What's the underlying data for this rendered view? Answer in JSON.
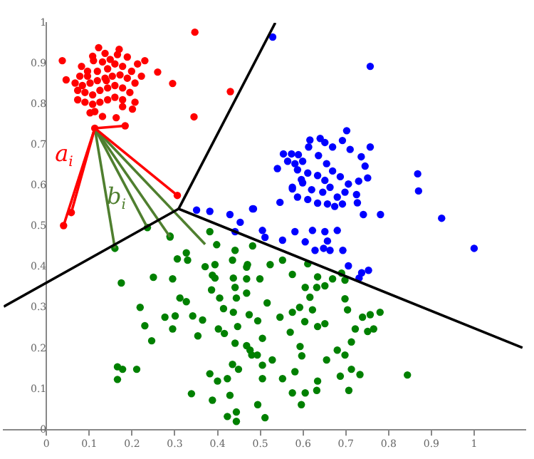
{
  "chart_data": {
    "type": "scatter",
    "xlim": [
      -0.1,
      1.12
    ],
    "ylim": [
      0,
      1
    ],
    "xticks": [
      {
        "value": 0,
        "label": "0"
      },
      {
        "value": 0.1,
        "label": "0.1"
      },
      {
        "value": 0.2,
        "label": "0.2"
      },
      {
        "value": 0.3,
        "label": "0.3"
      },
      {
        "value": 0.4,
        "label": "0.4"
      },
      {
        "value": 0.5,
        "label": "0.5"
      },
      {
        "value": 0.6,
        "label": "0.6"
      },
      {
        "value": 0.7,
        "label": "0.7"
      },
      {
        "value": 0.8,
        "label": "0.8"
      },
      {
        "value": 0.9,
        "label": "0.9"
      },
      {
        "value": 1,
        "label": "1"
      }
    ],
    "yticks": [
      {
        "value": 0,
        "label": "0"
      },
      {
        "value": 0.1,
        "label": "0.1"
      },
      {
        "value": 0.2,
        "label": "0.2"
      },
      {
        "value": 0.3,
        "label": "0.3"
      },
      {
        "value": 0.4,
        "label": "0.4"
      },
      {
        "value": 0.5,
        "label": "0.5"
      },
      {
        "value": 0.6,
        "label": "0.6"
      },
      {
        "value": 0.7,
        "label": "0.7"
      },
      {
        "value": 0.8,
        "label": "0.8"
      },
      {
        "value": 0.9,
        "label": "0.9"
      },
      {
        "value": 1,
        "label": "1"
      }
    ],
    "grid": false,
    "legend": false,
    "marker": "circle",
    "annotations": [
      "a$_{i}$",
      "b$_{i}$"
    ],
    "series": [
      {
        "type": "scatter",
        "color": "#ff0000",
        "x": [
          0.037,
          0.046,
          0.347,
          0.26,
          0.295,
          0.43,
          0.345,
          0.23,
          0.184,
          0.306,
          0.058,
          0.04,
          0.113,
          0.17,
          0.122,
          0.082,
          0.096,
          0.11,
          0.131,
          0.143,
          0.16,
          0.178,
          0.199,
          0.213,
          0.222,
          0.207,
          0.189,
          0.172,
          0.154,
          0.137,
          0.119,
          0.102,
          0.084,
          0.073,
          0.09,
          0.108,
          0.125,
          0.143,
          0.16,
          0.178,
          0.195,
          0.207,
          0.201,
          0.178,
          0.16,
          0.143,
          0.125,
          0.108,
          0.09,
          0.073,
          0.113,
          0.131,
          0.163,
          0.178,
          0.096,
          0.149,
          0.189,
          0.166,
          0.137,
          0.108,
          0.119,
          0.14,
          0.102,
          0.078,
          0.067
        ],
        "values": [
          0.907,
          0.86,
          0.977,
          0.879,
          0.851,
          0.831,
          0.769,
          0.907,
          0.747,
          0.576,
          0.534,
          0.502,
          0.741,
          0.935,
          0.939,
          0.893,
          0.881,
          0.907,
          0.904,
          0.887,
          0.899,
          0.893,
          0.881,
          0.899,
          0.869,
          0.852,
          0.864,
          0.872,
          0.869,
          0.864,
          0.858,
          0.852,
          0.846,
          0.834,
          0.829,
          0.823,
          0.834,
          0.84,
          0.846,
          0.84,
          0.829,
          0.805,
          0.788,
          0.811,
          0.817,
          0.811,
          0.805,
          0.8,
          0.805,
          0.811,
          0.782,
          0.77,
          0.767,
          0.794,
          0.869,
          0.91,
          0.916,
          0.922,
          0.925,
          0.918,
          0.881,
          0.858,
          0.779,
          0.869,
          0.852
        ]
      },
      {
        "type": "scatter",
        "color": "#0000ff",
        "x": [
          0.529,
          0.757,
          0.702,
          0.757,
          0.868,
          0.87,
          0.924,
          0.781,
          0.741,
          0.546,
          0.484,
          0.554,
          0.573,
          0.589,
          0.616,
          0.64,
          0.651,
          0.669,
          0.692,
          0.71,
          0.736,
          0.745,
          0.751,
          0.73,
          0.706,
          0.687,
          0.669,
          0.655,
          0.636,
          0.613,
          0.599,
          0.581,
          0.564,
          0.54,
          0.587,
          0.611,
          0.634,
          0.651,
          0.663,
          0.646,
          0.62,
          0.599,
          0.575,
          0.587,
          0.611,
          0.634,
          0.657,
          0.68,
          0.698,
          0.725,
          0.727,
          0.674,
          0.575,
          0.596,
          0.692,
          1.0,
          0.753,
          0.737,
          0.731,
          0.706,
          0.693,
          0.663,
          0.648,
          0.628,
          0.605,
          0.657,
          0.68,
          0.651,
          0.622,
          0.581,
          0.552,
          0.511,
          0.505,
          0.351,
          0.382,
          0.429,
          0.453,
          0.482,
          0.441
        ],
        "values": [
          0.965,
          0.893,
          0.735,
          0.695,
          0.629,
          0.587,
          0.52,
          0.529,
          0.529,
          0.559,
          0.543,
          0.678,
          0.678,
          0.676,
          0.712,
          0.716,
          0.706,
          0.695,
          0.711,
          0.689,
          0.671,
          0.648,
          0.619,
          0.611,
          0.604,
          0.622,
          0.636,
          0.654,
          0.674,
          0.695,
          0.66,
          0.654,
          0.66,
          0.642,
          0.639,
          0.631,
          0.625,
          0.613,
          0.596,
          0.584,
          0.59,
          0.607,
          0.596,
          0.572,
          0.566,
          0.557,
          0.555,
          0.572,
          0.584,
          0.578,
          0.558,
          0.549,
          0.592,
          0.615,
          0.555,
          0.446,
          0.392,
          0.386,
          0.373,
          0.403,
          0.441,
          0.441,
          0.446,
          0.441,
          0.462,
          0.464,
          0.49,
          0.487,
          0.49,
          0.487,
          0.466,
          0.473,
          0.49,
          0.54,
          0.537,
          0.529,
          0.51,
          0.543,
          0.487
        ]
      },
      {
        "type": "scatter",
        "color": "#008000",
        "x": [
          0.16,
          0.175,
          0.219,
          0.23,
          0.246,
          0.25,
          0.277,
          0.295,
          0.301,
          0.295,
          0.289,
          0.327,
          0.33,
          0.312,
          0.327,
          0.306,
          0.166,
          0.178,
          0.166,
          0.211,
          0.339,
          0.342,
          0.365,
          0.354,
          0.371,
          0.382,
          0.398,
          0.394,
          0.388,
          0.394,
          0.386,
          0.405,
          0.414,
          0.402,
          0.416,
          0.435,
          0.441,
          0.437,
          0.441,
          0.444,
          0.437,
          0.447,
          0.441,
          0.435,
          0.449,
          0.423,
          0.4,
          0.382,
          0.429,
          0.388,
          0.423,
          0.444,
          0.444,
          0.468,
          0.468,
          0.468,
          0.474,
          0.468,
          0.48,
          0.494,
          0.494,
          0.482,
          0.47,
          0.499,
          0.523,
          0.552,
          0.575,
          0.611,
          0.634,
          0.669,
          0.698,
          0.605,
          0.632,
          0.616,
          0.516,
          0.546,
          0.575,
          0.592,
          0.622,
          0.634,
          0.651,
          0.604,
          0.57,
          0.505,
          0.476,
          0.493,
          0.505,
          0.528,
          0.593,
          0.597,
          0.581,
          0.552,
          0.505,
          0.575,
          0.605,
          0.634,
          0.632,
          0.596,
          0.511,
          0.687,
          0.707,
          0.713,
          0.733,
          0.68,
          0.698,
          0.713,
          0.722,
          0.751,
          0.765,
          0.757,
          0.78,
          0.739,
          0.704,
          0.698,
          0.655,
          0.844,
          0.651,
          0.69,
          0.236,
          0.289
        ],
        "values": [
          0.446,
          0.361,
          0.301,
          0.256,
          0.219,
          0.375,
          0.277,
          0.248,
          0.28,
          0.371,
          0.476,
          0.435,
          0.417,
          0.324,
          0.315,
          0.42,
          0.155,
          0.149,
          0.124,
          0.149,
          0.089,
          0.28,
          0.27,
          0.231,
          0.401,
          0.487,
          0.455,
          0.406,
          0.38,
          0.373,
          0.344,
          0.324,
          0.298,
          0.248,
          0.237,
          0.417,
          0.441,
          0.373,
          0.35,
          0.324,
          0.289,
          0.254,
          0.213,
          0.161,
          0.149,
          0.126,
          0.12,
          0.138,
          0.085,
          0.073,
          0.033,
          0.021,
          0.044,
          0.4,
          0.371,
          0.336,
          0.283,
          0.207,
          0.184,
          0.062,
          0.268,
          0.452,
          0.406,
          0.371,
          0.406,
          0.417,
          0.382,
          0.408,
          0.376,
          0.371,
          0.368,
          0.35,
          0.35,
          0.326,
          0.312,
          0.277,
          0.289,
          0.301,
          0.295,
          0.254,
          0.261,
          0.266,
          0.24,
          0.225,
          0.196,
          0.184,
          0.159,
          0.172,
          0.205,
          0.182,
          0.143,
          0.126,
          0.126,
          0.091,
          0.091,
          0.12,
          0.097,
          0.062,
          0.03,
          0.132,
          0.097,
          0.149,
          0.136,
          0.196,
          0.184,
          0.216,
          0.248,
          0.242,
          0.248,
          0.283,
          0.289,
          0.277,
          0.295,
          0.322,
          0.172,
          0.135,
          0.354,
          0.385,
          0.497,
          0.474
        ]
      },
      {
        "type": "line",
        "marker": "none",
        "color": "#000000",
        "x": [
          0.309,
          0.535
        ],
        "values": [
          0.543,
          1.0
        ]
      },
      {
        "type": "line",
        "marker": "none",
        "color": "#000000",
        "x": [
          0.309,
          -0.1
        ],
        "values": [
          0.543,
          0.303
        ]
      },
      {
        "type": "line",
        "marker": "none",
        "color": "#000000",
        "x": [
          0.309,
          1.113
        ],
        "values": [
          0.543,
          0.202
        ]
      },
      {
        "type": "line",
        "marker": "none",
        "color": "#ff0000",
        "x": [
          0.113,
          0.04
        ],
        "values": [
          0.741,
          0.502
        ]
      },
      {
        "type": "line",
        "marker": "none",
        "color": "#ff0000",
        "x": [
          0.113,
          0.058
        ],
        "values": [
          0.741,
          0.534
        ]
      },
      {
        "type": "line",
        "marker": "none",
        "color": "#ff0000",
        "x": [
          0.113,
          0.306
        ],
        "values": [
          0.741,
          0.576
        ]
      },
      {
        "type": "line",
        "marker": "none",
        "color": "#ff0000",
        "x": [
          0.113,
          0.184
        ],
        "values": [
          0.741,
          0.747
        ]
      },
      {
        "type": "line",
        "marker": "none",
        "color": "#4f7f2f",
        "x": [
          0.113,
          0.16
        ],
        "values": [
          0.741,
          0.446
        ]
      },
      {
        "type": "line",
        "marker": "none",
        "color": "#4f7f2f",
        "x": [
          0.113,
          0.236
        ],
        "values": [
          0.741,
          0.497
        ]
      },
      {
        "type": "line",
        "marker": "none",
        "color": "#4f7f2f",
        "x": [
          0.113,
          0.289
        ],
        "values": [
          0.741,
          0.474
        ]
      },
      {
        "type": "line",
        "marker": "none",
        "color": "#4f7f2f",
        "x": [
          0.113,
          0.371
        ],
        "values": [
          0.741,
          0.456
        ]
      }
    ]
  }
}
